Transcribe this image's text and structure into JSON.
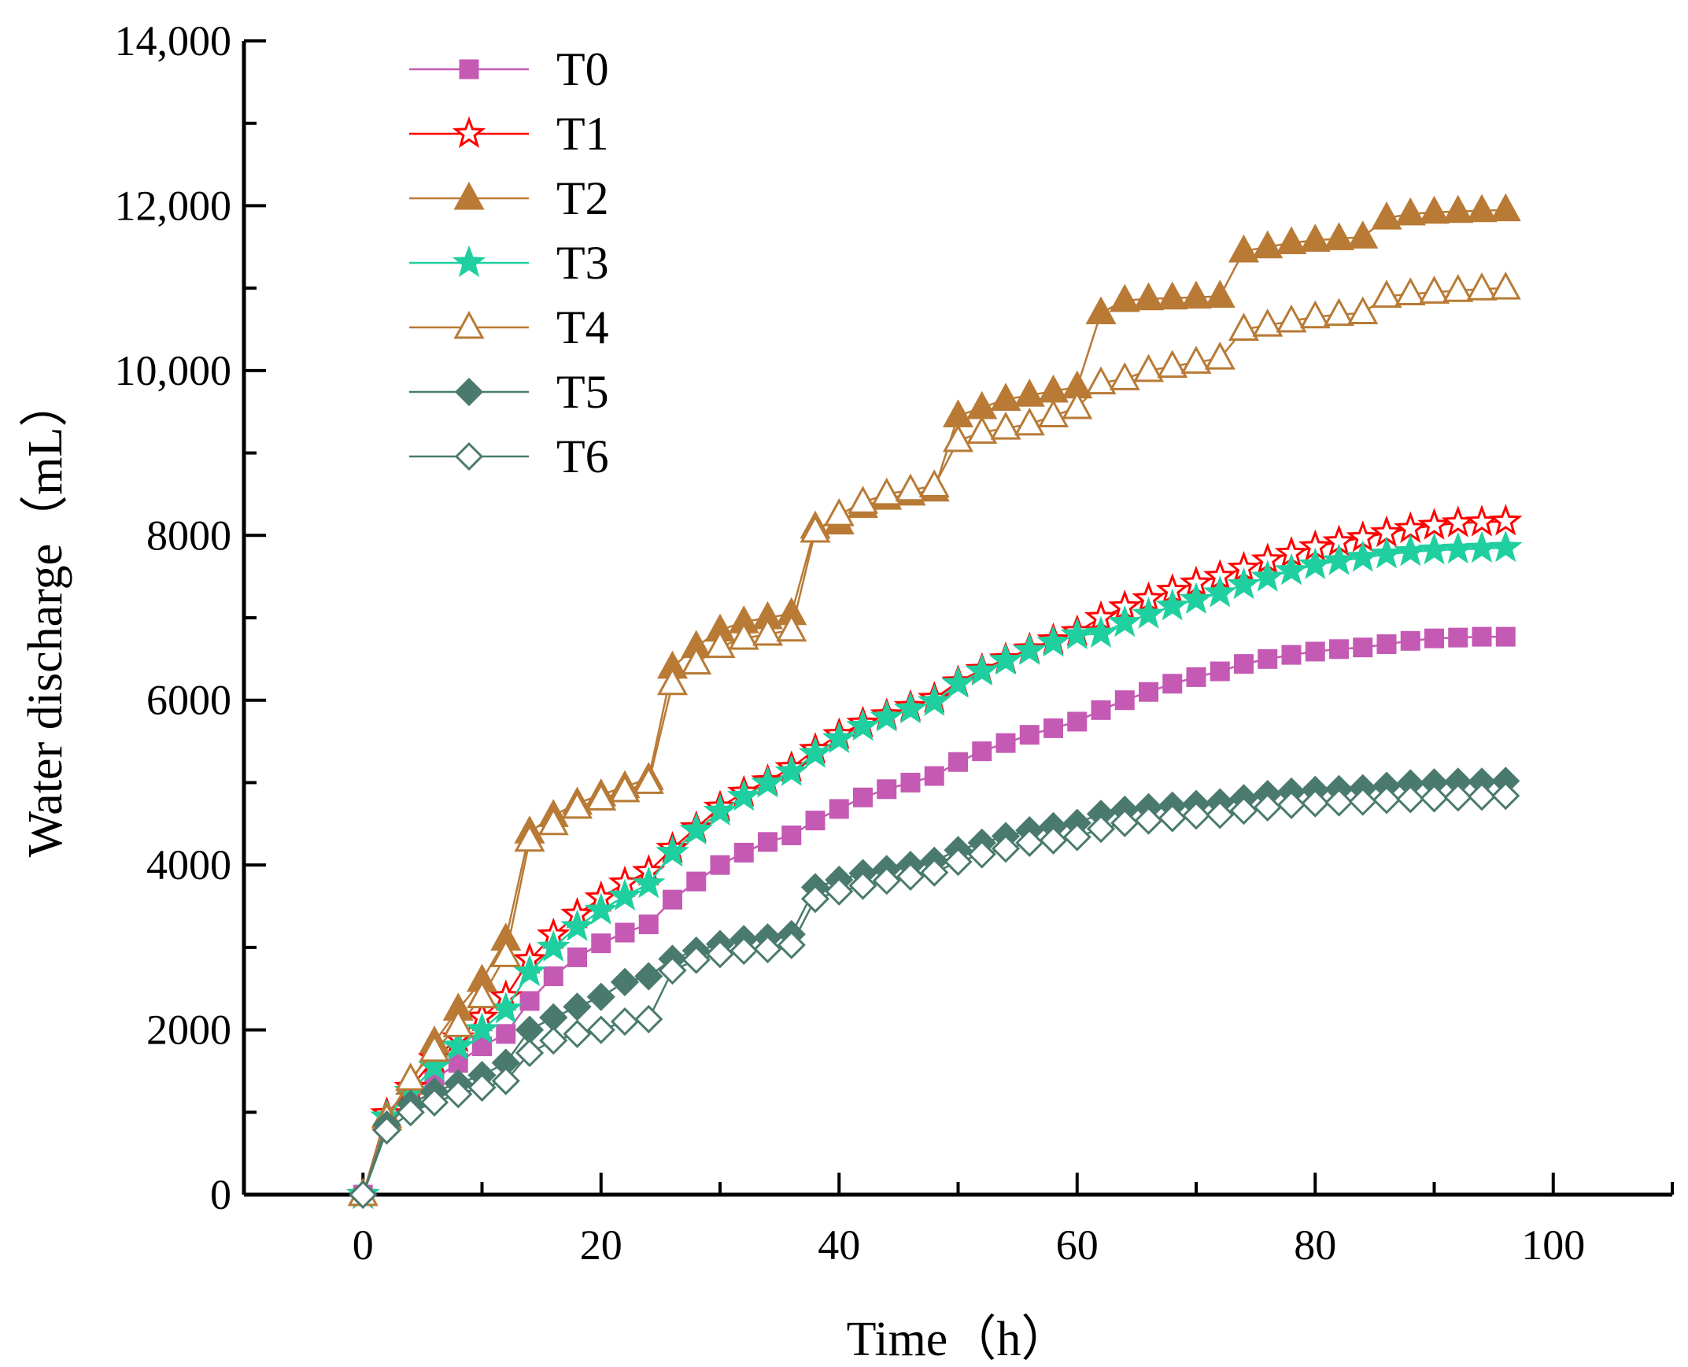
{
  "chart_data": {
    "type": "line",
    "xlabel": "Time（h）",
    "ylabel": "Water discharge（mL）",
    "xlim": [
      -10,
      110
    ],
    "ylim": [
      0,
      14000
    ],
    "x_ticks": [
      0,
      20,
      40,
      60,
      80,
      100
    ],
    "x_tick_labels": [
      "0",
      "20",
      "40",
      "60",
      "80",
      "100"
    ],
    "y_ticks": [
      0,
      2000,
      4000,
      6000,
      8000,
      10000,
      12000,
      14000
    ],
    "y_tick_labels": [
      "0",
      "2000",
      "4000",
      "6000",
      "8000",
      "10,000",
      "12,000",
      "14,000"
    ],
    "grid": false,
    "legend_position": "top-left",
    "x": [
      0,
      2,
      4,
      6,
      8,
      10,
      12,
      14,
      16,
      18,
      20,
      22,
      24,
      26,
      28,
      30,
      32,
      34,
      36,
      38,
      40,
      42,
      44,
      46,
      48,
      50,
      52,
      54,
      56,
      58,
      60,
      62,
      64,
      66,
      68,
      70,
      72,
      74,
      76,
      78,
      80,
      82,
      84,
      86,
      88,
      90,
      92,
      94,
      96
    ],
    "series": [
      {
        "name": "T0",
        "color": "#c45ab3",
        "marker": "square",
        "filled": true,
        "values": [
          0,
          900,
          1150,
          1400,
          1600,
          1800,
          1950,
          2350,
          2650,
          2880,
          3050,
          3180,
          3280,
          3580,
          3800,
          4000,
          4150,
          4280,
          4360,
          4540,
          4680,
          4820,
          4920,
          5000,
          5080,
          5250,
          5380,
          5480,
          5580,
          5660,
          5740,
          5880,
          6000,
          6100,
          6200,
          6280,
          6350,
          6440,
          6500,
          6550,
          6590,
          6620,
          6640,
          6680,
          6720,
          6750,
          6760,
          6770,
          6770
        ]
      },
      {
        "name": "T1",
        "color": "#ff0000",
        "marker": "star",
        "filled": false,
        "values": [
          0,
          980,
          1300,
          1650,
          1900,
          2150,
          2400,
          2850,
          3150,
          3400,
          3600,
          3780,
          3920,
          4200,
          4450,
          4700,
          4880,
          5020,
          5180,
          5400,
          5580,
          5720,
          5820,
          5920,
          6020,
          6220,
          6370,
          6500,
          6620,
          6730,
          6830,
          7000,
          7130,
          7230,
          7330,
          7420,
          7500,
          7600,
          7700,
          7780,
          7860,
          7920,
          7970,
          8030,
          8080,
          8120,
          8150,
          8160,
          8170
        ]
      },
      {
        "name": "T2",
        "color": "#b87a35",
        "marker": "triangle",
        "filled": true,
        "values": [
          0,
          950,
          1350,
          1850,
          2250,
          2600,
          3100,
          4400,
          4600,
          4750,
          4850,
          4950,
          5050,
          6400,
          6650,
          6850,
          6950,
          7000,
          7050,
          8100,
          8150,
          8350,
          8450,
          8500,
          8550,
          9450,
          9550,
          9650,
          9700,
          9750,
          9800,
          10700,
          10850,
          10870,
          10880,
          10890,
          10900,
          11450,
          11500,
          11550,
          11580,
          11600,
          11620,
          11850,
          11900,
          11920,
          11930,
          11940,
          11950
        ]
      },
      {
        "name": "T3",
        "color": "#1fcf9f",
        "marker": "star",
        "filled": true,
        "values": [
          0,
          940,
          1250,
          1550,
          1800,
          2000,
          2250,
          2700,
          3000,
          3250,
          3450,
          3620,
          3770,
          4150,
          4420,
          4650,
          4830,
          4990,
          5130,
          5350,
          5530,
          5680,
          5790,
          5890,
          5980,
          6200,
          6350,
          6480,
          6600,
          6700,
          6790,
          6810,
          6940,
          7040,
          7140,
          7220,
          7300,
          7400,
          7490,
          7570,
          7640,
          7690,
          7730,
          7770,
          7800,
          7820,
          7830,
          7840,
          7850
        ]
      },
      {
        "name": "T4",
        "color": "#b87a35",
        "marker": "triangle",
        "filled": false,
        "values": [
          0,
          920,
          1400,
          1750,
          2050,
          2400,
          2900,
          4300,
          4500,
          4700,
          4800,
          4900,
          5000,
          6200,
          6450,
          6650,
          6750,
          6800,
          6850,
          8050,
          8250,
          8400,
          8500,
          8550,
          8600,
          9150,
          9250,
          9300,
          9350,
          9450,
          9550,
          9850,
          9900,
          10000,
          10050,
          10100,
          10150,
          10500,
          10550,
          10600,
          10650,
          10680,
          10700,
          10900,
          10930,
          10950,
          10970,
          10990,
          11000
        ]
      },
      {
        "name": "T5",
        "color": "#4a7a6e",
        "marker": "diamond",
        "filled": true,
        "values": [
          0,
          850,
          1100,
          1250,
          1350,
          1450,
          1600,
          2000,
          2150,
          2280,
          2400,
          2580,
          2650,
          2860,
          2960,
          3040,
          3100,
          3120,
          3160,
          3730,
          3820,
          3900,
          3950,
          4000,
          4050,
          4180,
          4270,
          4350,
          4420,
          4470,
          4510,
          4620,
          4670,
          4700,
          4720,
          4740,
          4760,
          4810,
          4860,
          4890,
          4910,
          4920,
          4930,
          4960,
          4990,
          5000,
          5010,
          5010,
          5020
        ]
      },
      {
        "name": "T6",
        "color": "#4a7a6e",
        "marker": "diamond",
        "filled": false,
        "values": [
          0,
          780,
          1000,
          1120,
          1220,
          1300,
          1380,
          1720,
          1870,
          1950,
          2000,
          2100,
          2130,
          2720,
          2850,
          2920,
          2960,
          2980,
          3030,
          3590,
          3680,
          3750,
          3810,
          3860,
          3910,
          4040,
          4130,
          4200,
          4270,
          4300,
          4340,
          4440,
          4510,
          4540,
          4570,
          4600,
          4610,
          4660,
          4700,
          4730,
          4750,
          4760,
          4770,
          4790,
          4800,
          4810,
          4820,
          4830,
          4840
        ]
      }
    ]
  }
}
